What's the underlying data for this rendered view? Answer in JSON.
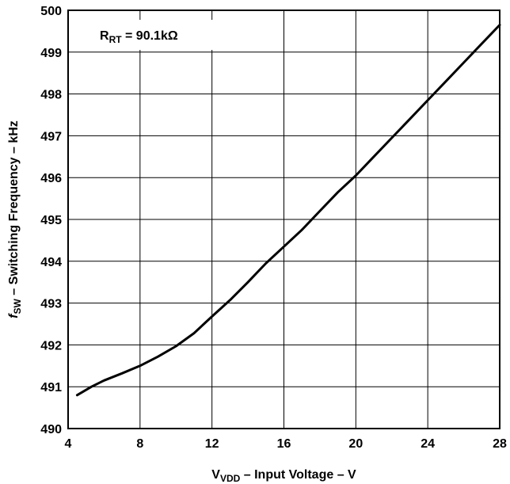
{
  "chart_data": {
    "type": "line",
    "title": "",
    "xlabel": {
      "main": "V",
      "sub": "VDD",
      "rest": " – Input Voltage – V"
    },
    "ylabel": {
      "main": "f",
      "sub": "SW",
      "rest": " – Switching Frequency – kHz"
    },
    "xlim": [
      4,
      28
    ],
    "ylim": [
      490,
      500
    ],
    "x_ticks": [
      4,
      8,
      12,
      16,
      20,
      24,
      28
    ],
    "y_ticks": [
      490,
      491,
      492,
      493,
      494,
      495,
      496,
      497,
      498,
      499,
      500
    ],
    "grid": true,
    "annotation": {
      "main": "R",
      "sub": "RT",
      "rest": " = 90.1kΩ"
    },
    "series": [
      {
        "x": [
          4.5,
          5.3,
          6.0,
          7.0,
          8.0,
          9.0,
          10.0,
          11.0,
          12.0,
          13.0,
          14.0,
          15.0,
          16.0,
          17.0,
          18.0,
          19.0,
          20.0,
          21.0,
          22.0,
          23.0,
          24.0,
          25.0,
          26.0,
          27.0,
          28.0
        ],
        "values": [
          490.8,
          491.0,
          491.15,
          491.32,
          491.5,
          491.72,
          491.97,
          492.28,
          492.68,
          493.07,
          493.5,
          493.95,
          494.35,
          494.75,
          495.2,
          495.65,
          496.05,
          496.5,
          496.95,
          497.4,
          497.85,
          498.3,
          498.75,
          499.2,
          499.65
        ]
      }
    ]
  },
  "style": {
    "line_color": "#000000",
    "grid_color": "#000000",
    "background": "#ffffff"
  }
}
